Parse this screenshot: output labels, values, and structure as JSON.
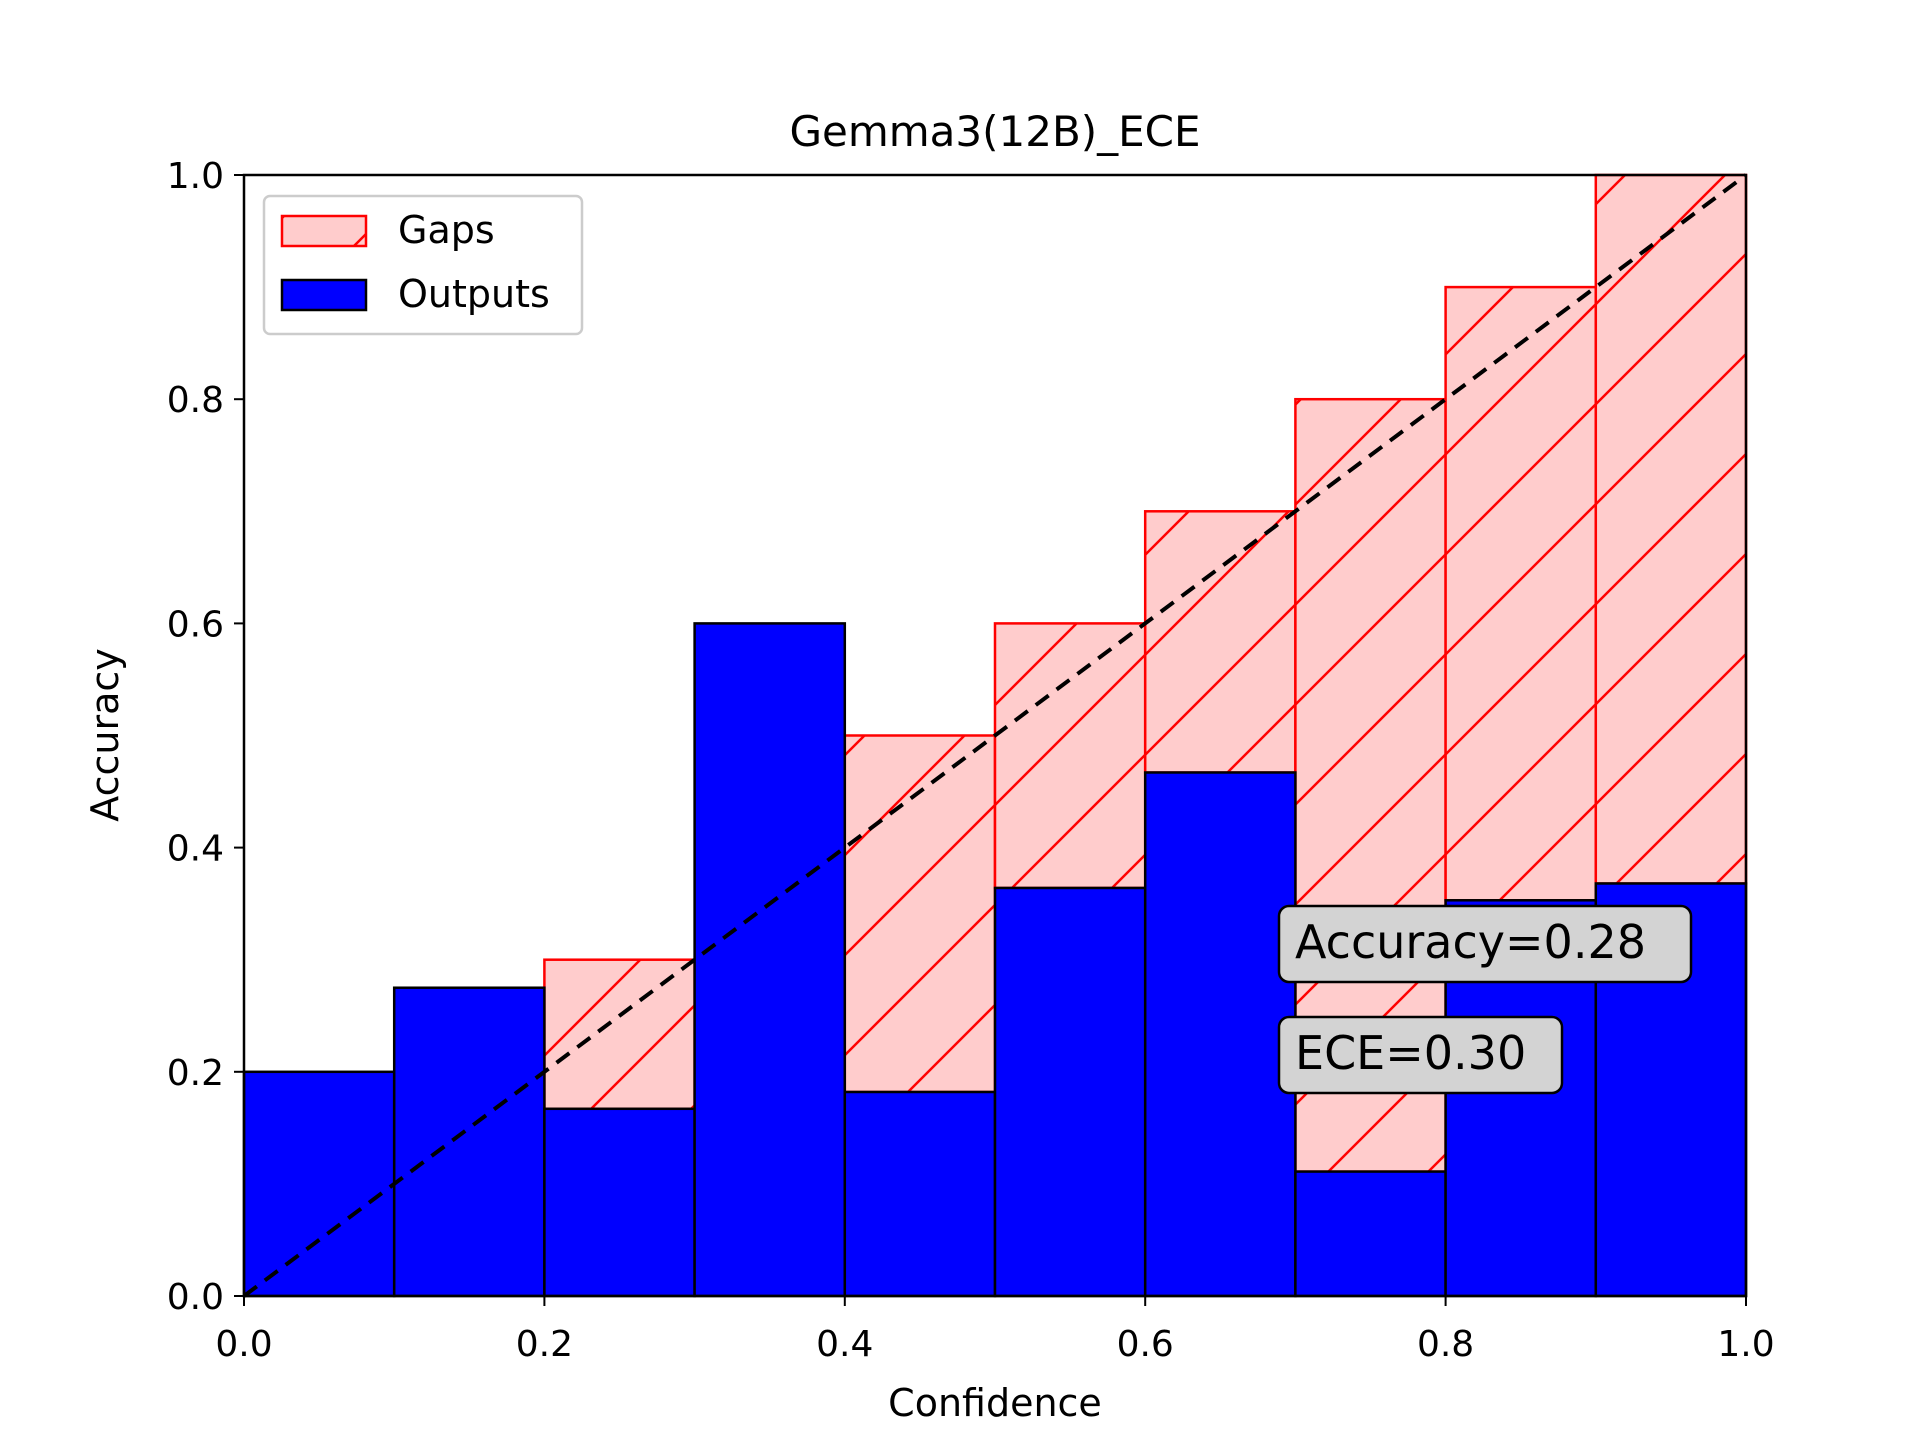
{
  "chart_data": {
    "type": "bar",
    "title": "Gemma3(12B)_ECE",
    "xlabel": "Confidence",
    "ylabel": "Accuracy",
    "xlim": [
      0.0,
      1.0
    ],
    "ylim": [
      0.0,
      1.0
    ],
    "xticks": [
      "0.0",
      "0.2",
      "0.4",
      "0.6",
      "0.8",
      "1.0"
    ],
    "yticks": [
      "0.0",
      "0.2",
      "0.4",
      "0.6",
      "0.8",
      "1.0"
    ],
    "bin_edges": [
      0.0,
      0.1,
      0.2,
      0.3,
      0.4,
      0.5,
      0.6,
      0.7,
      0.8,
      0.9,
      1.0
    ],
    "bin_centers": [
      0.05,
      0.15,
      0.25,
      0.35,
      0.45,
      0.55,
      0.65,
      0.75,
      0.85,
      0.95
    ],
    "series": [
      {
        "name": "Outputs",
        "values": [
          0.2,
          0.275,
          0.167,
          0.6,
          0.182,
          0.364,
          0.467,
          0.111,
          0.353,
          0.368
        ]
      },
      {
        "name": "Gaps",
        "top": [
          0.0,
          0.0,
          0.3,
          0.3,
          0.5,
          0.6,
          0.7,
          0.8,
          0.9,
          1.0
        ]
      }
    ],
    "annotations": [
      "Accuracy=0.28",
      "ECE=0.30"
    ],
    "legend_position": "upper-left",
    "grid": false,
    "colors": {
      "outputs_fill": "#0000ff",
      "outputs_edge": "#000000",
      "gaps_fill": "#ffcccc",
      "gaps_edge": "#ff0000",
      "diagonal": "#000000",
      "annotation_box": "#d3d3d3"
    }
  }
}
